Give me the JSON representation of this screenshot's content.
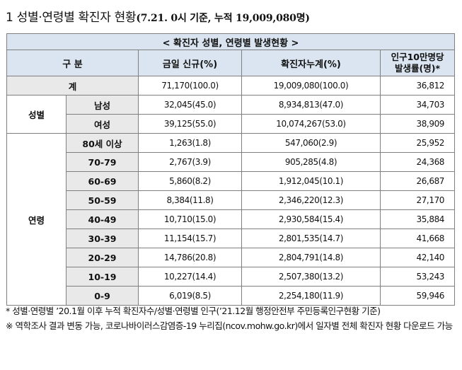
{
  "title": {
    "main": "1  성별·연령별 확진자 현황",
    "sub": "(7.21. 0시 기준, 누적 19,009,080명)"
  },
  "caption": "< 확진자 성별, 연령별 발생현황 >",
  "headers": {
    "category": "구  분",
    "new": "금일 신규(%)",
    "cumulative": "확진자누계(%)",
    "per100k_line1": "인구10만명당",
    "per100k_line2": "발생률(명)*"
  },
  "total": {
    "label": "계",
    "new": "71,170",
    "new_pct": "(100.0)",
    "cum": "19,009,080",
    "cum_pct": "(100.0)",
    "rate": "36,812"
  },
  "sex_group": "성별",
  "sex_rows": [
    {
      "label": "남성",
      "new": "32,045",
      "new_pct": "(45.0)",
      "cum": "8,934,813",
      "cum_pct": "(47.0)",
      "rate": "34,703"
    },
    {
      "label": "여성",
      "new": "39,125",
      "new_pct": "(55.0)",
      "cum": "10,074,267",
      "cum_pct": "(53.0)",
      "rate": "38,909"
    }
  ],
  "age_group": "연령",
  "age_rows": [
    {
      "label": "80세 이상",
      "new": "1,263",
      "new_pct": "(1.8)",
      "cum": "547,060",
      "cum_pct": "(2.9)",
      "rate": "25,952"
    },
    {
      "label": "70-79",
      "new": "2,767",
      "new_pct": "(3.9)",
      "cum": "905,285",
      "cum_pct": "(4.8)",
      "rate": "24,368"
    },
    {
      "label": "60-69",
      "new": "5,860",
      "new_pct": "(8.2)",
      "cum": "1,912,045",
      "cum_pct": "(10.1)",
      "rate": "26,687"
    },
    {
      "label": "50-59",
      "new": "8,384",
      "new_pct": "(11.8)",
      "cum": "2,346,220",
      "cum_pct": "(12.3)",
      "rate": "27,170"
    },
    {
      "label": "40-49",
      "new": "10,710",
      "new_pct": "(15.0)",
      "cum": "2,930,584",
      "cum_pct": "(15.4)",
      "rate": "35,884"
    },
    {
      "label": "30-39",
      "new": "11,154",
      "new_pct": "(15.7)",
      "cum": "2,801,535",
      "cum_pct": "(14.7)",
      "rate": "41,668"
    },
    {
      "label": "20-29",
      "new": "14,786",
      "new_pct": "(20.8)",
      "cum": "2,804,791",
      "cum_pct": "(14.8)",
      "rate": "42,140"
    },
    {
      "label": "10-19",
      "new": "10,227",
      "new_pct": "(14.4)",
      "cum": "2,507,380",
      "cum_pct": "(13.2)",
      "rate": "53,243"
    },
    {
      "label": "0-9",
      "new": "6,019",
      "new_pct": "(8.5)",
      "cum": "2,254,180",
      "cum_pct": "(11.9)",
      "rate": "59,946"
    }
  ],
  "notes": [
    "* 성별·연령별 ’20.1월 이후 누적 확진자수/성별·연령별 인구(’21.12월 행정안전부 주민등록인구현황 기준)",
    "※ 역학조사 결과 변동 가능, 코로나바이러스감염증-19 누리집(ncov.mohw.go.kr)에서 일자별 전체 확진자 현황 다운로드 가능"
  ]
}
